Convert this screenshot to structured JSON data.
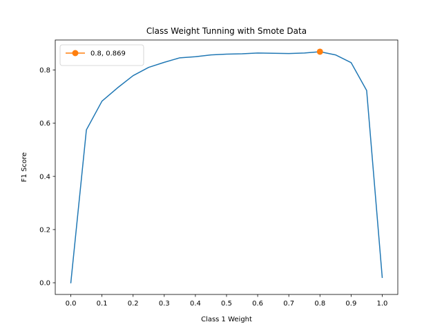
{
  "chart_data": {
    "type": "line",
    "title": "Class Weight Tunning with Smote Data",
    "xlabel": "Class 1 Weight",
    "ylabel": "F1 Score",
    "xlim": [
      -0.05,
      1.05
    ],
    "ylim": [
      -0.044,
      0.913
    ],
    "xticks": [
      "0.0",
      "0.1",
      "0.2",
      "0.3",
      "0.4",
      "0.5",
      "0.6",
      "0.7",
      "0.8",
      "0.9",
      "1.0"
    ],
    "yticks": [
      "0.0",
      "0.2",
      "0.4",
      "0.6",
      "0.8"
    ],
    "grid": false,
    "legend_position": "top-left",
    "series": [
      {
        "color": "#1f77b4",
        "x": [
          0.0,
          0.05,
          0.1,
          0.15,
          0.2,
          0.25,
          0.3,
          0.35,
          0.4,
          0.45,
          0.5,
          0.55,
          0.6,
          0.65,
          0.7,
          0.75,
          0.8,
          0.85,
          0.9,
          0.95,
          1.0
        ],
        "y": [
          0.0,
          0.575,
          0.683,
          0.733,
          0.779,
          0.81,
          0.829,
          0.846,
          0.85,
          0.857,
          0.86,
          0.861,
          0.864,
          0.863,
          0.862,
          0.864,
          0.869,
          0.857,
          0.828,
          0.723,
          0.02
        ]
      },
      {
        "name": "0.8, 0.869",
        "color": "#ff7f0e",
        "marker": "circle",
        "x": [
          0.8
        ],
        "y": [
          0.869
        ]
      }
    ]
  }
}
